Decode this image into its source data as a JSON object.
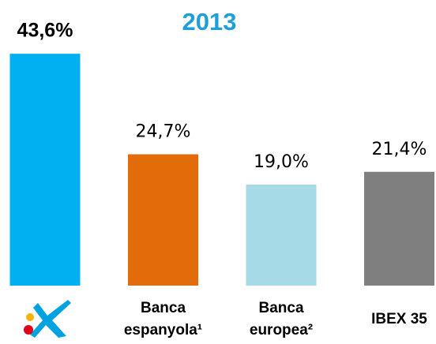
{
  "chart_data": {
    "type": "bar",
    "title": "2013",
    "categories": [
      null,
      "Banca espanyola¹",
      "Banca europea²",
      "IBEX 35"
    ],
    "values": [
      43.6,
      24.7,
      19.0,
      21.4
    ],
    "value_labels": [
      "43,6%",
      "24,7%",
      "19,0%",
      "21,4%"
    ],
    "colors": [
      "#00b0f0",
      "#e36c0a",
      "#a6dae6",
      "#7f7f7f"
    ]
  }
}
